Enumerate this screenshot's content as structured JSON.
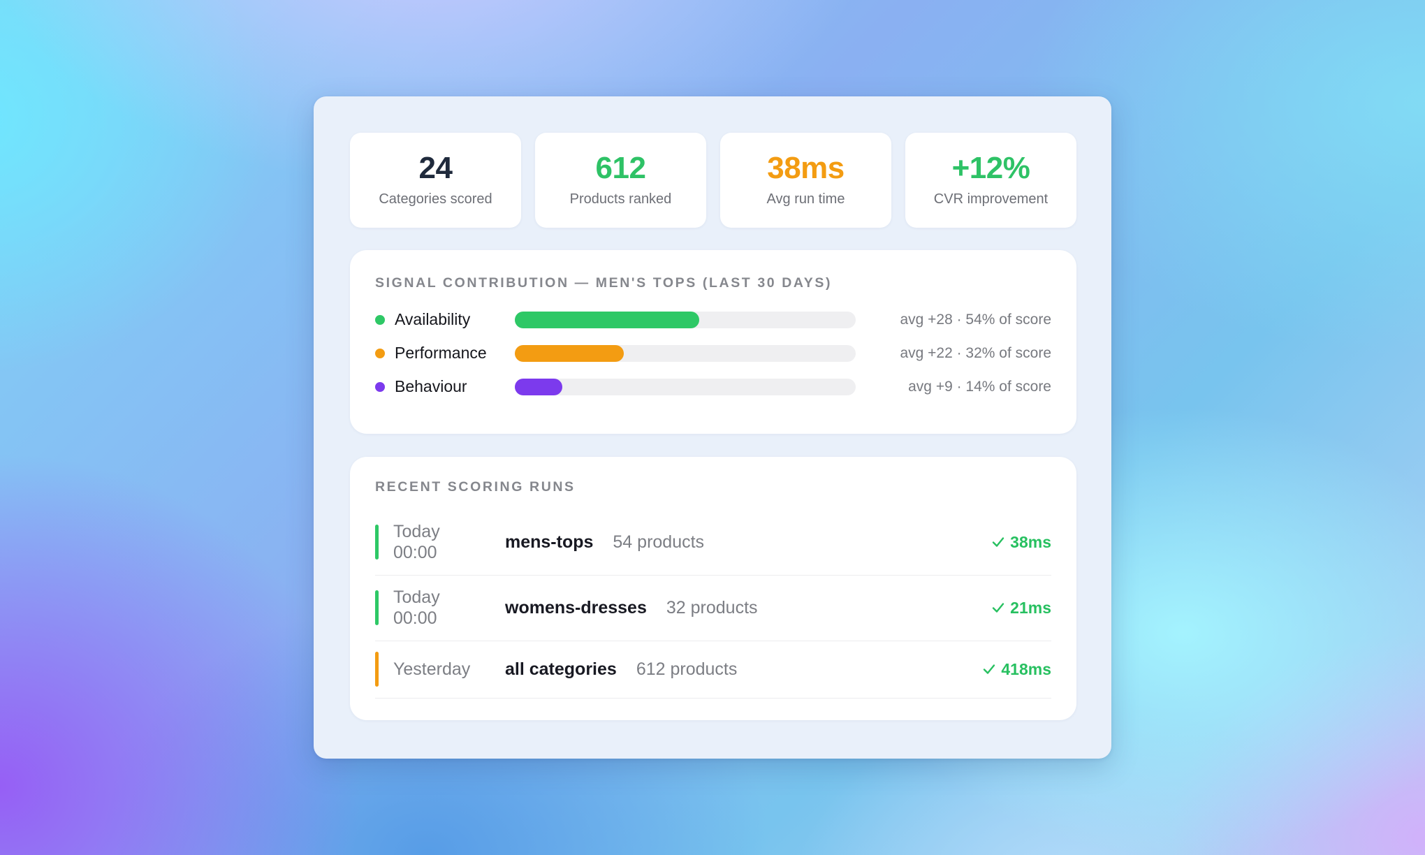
{
  "stats": [
    {
      "value": "24",
      "label": "Categories scored",
      "color": "#1f2a3c"
    },
    {
      "value": "612",
      "label": "Products ranked",
      "color": "#2ec266"
    },
    {
      "value": "38ms",
      "label": "Avg run time",
      "color": "#f39c12"
    },
    {
      "value": "+12%",
      "label": "CVR improvement",
      "color": "#2ec266"
    }
  ],
  "signal": {
    "title": "SIGNAL CONTRIBUTION — MEN'S TOPS (LAST 30 DAYS)",
    "rows": [
      {
        "name": "Availability",
        "color": "#2ec866",
        "fill_fraction": 0.54,
        "stat": "avg +28 · 54% of score"
      },
      {
        "name": "Performance",
        "color": "#f39c12",
        "fill_fraction": 0.32,
        "stat": "avg +22 · 32% of score"
      },
      {
        "name": "Behaviour",
        "color": "#7c3aed",
        "fill_fraction": 0.14,
        "stat": "avg +9 · 14% of score"
      }
    ]
  },
  "runs": {
    "title": "RECENT SCORING RUNS",
    "items": [
      {
        "when_line1": "Today",
        "when_line2": "00:00",
        "category": "mens-tops",
        "count": "54 products",
        "duration": "38ms",
        "status_color": "#2ec866",
        "status_icon": "check-icon"
      },
      {
        "when_line1": "Today",
        "when_line2": "00:00",
        "category": "womens-dresses",
        "count": "32 products",
        "duration": "21ms",
        "status_color": "#2ec866",
        "status_icon": "check-icon"
      },
      {
        "when_line1": "Yesterday",
        "when_line2": "",
        "category": "all categories",
        "count": "612 products",
        "duration": "418ms",
        "status_color": "#f39c12",
        "status_icon": "check-icon"
      }
    ]
  }
}
